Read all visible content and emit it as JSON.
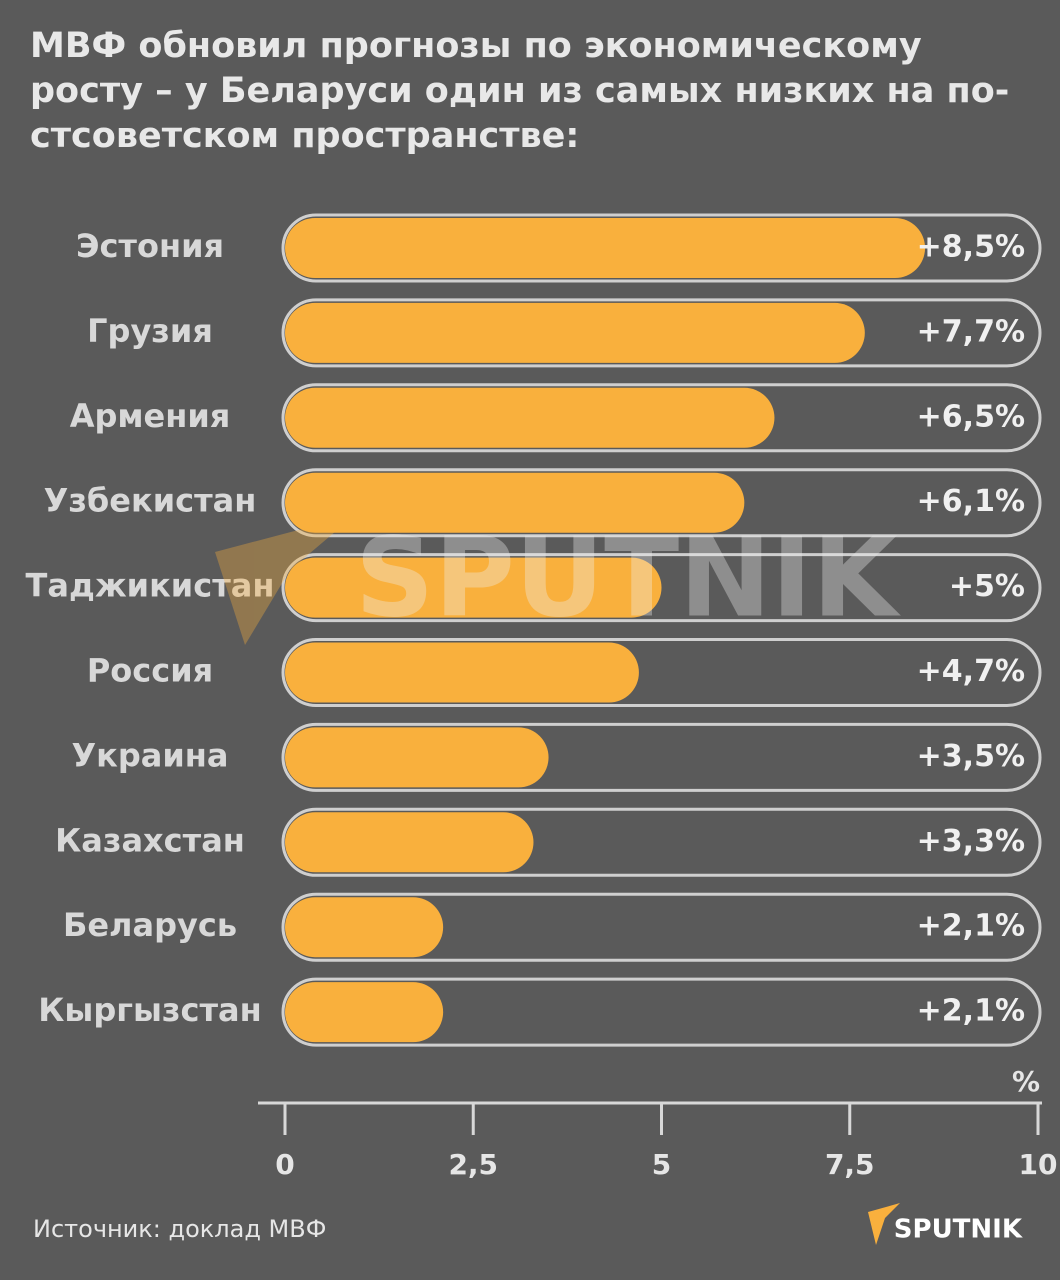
{
  "chart_data": {
    "type": "bar",
    "orientation": "horizontal",
    "title": [
      "МВФ обновил прогнозы по экономическому",
      "росту – у Беларуси один из самых низких на по-",
      "стсоветском пространстве:"
    ],
    "categories": [
      "Эстония",
      "Грузия",
      "Армения",
      "Узбекистан",
      "Таджикистан",
      "Россия",
      "Украина",
      "Казахстан",
      "Беларусь",
      "Кыргызстан"
    ],
    "values": [
      8.5,
      7.7,
      6.5,
      6.1,
      5,
      4.7,
      3.5,
      3.3,
      2.1,
      2.1
    ],
    "value_labels": [
      "+8,5%",
      "+7,7%",
      "+6,5%",
      "+6,1%",
      "+5%",
      "+4,7%",
      "+3,5%",
      "+3,3%",
      "+2,1%",
      "+2,1%"
    ],
    "color": "#f9b03d",
    "xlim": [
      0,
      10
    ],
    "xticks": [
      0,
      {
        "value": 2.5,
        "label": "2,5"
      },
      5,
      {
        "value": 7.5,
        "label": "7,5"
      },
      10
    ],
    "xlabel": "%",
    "source": "Источник: доклад МВФ",
    "watermark": "SPUTNIK",
    "logo": "SPUTNIK"
  }
}
